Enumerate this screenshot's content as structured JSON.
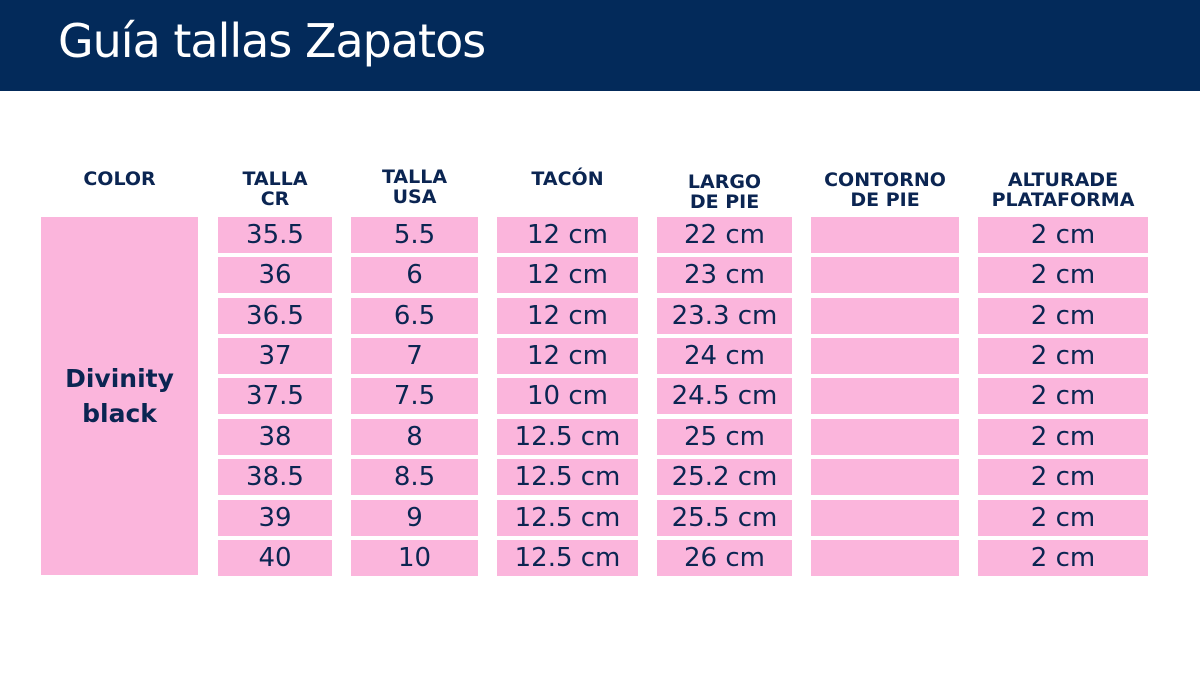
{
  "title": "Guía tallas Zapatos",
  "colors": {
    "header_bg": "#032a5a",
    "cell_bg": "#fbb5dc",
    "text_dark": "#0b2552"
  },
  "columns": [
    {
      "key": "color",
      "header": "COLOR"
    },
    {
      "key": "talla_cr",
      "header": "TALLA\nCR"
    },
    {
      "key": "talla_usa",
      "header": "TALLA\nUSA"
    },
    {
      "key": "tacon",
      "header": "TACÓN"
    },
    {
      "key": "largo_pie",
      "header": "LARGO\nDE PIE"
    },
    {
      "key": "contorno_pie",
      "header": "CONTORNO\nDE PIE"
    },
    {
      "key": "altura_plataforma",
      "header": "ALTURADE\nPLATAFORMA"
    }
  ],
  "color_name": "Divinity\nblack",
  "rows": [
    {
      "talla_cr": "35.5",
      "talla_usa": "5.5",
      "tacon": "12 cm",
      "largo_pie": "22 cm",
      "contorno_pie": "",
      "altura_plataforma": "2 cm"
    },
    {
      "talla_cr": "36",
      "talla_usa": "6",
      "tacon": "12 cm",
      "largo_pie": "23 cm",
      "contorno_pie": "",
      "altura_plataforma": "2 cm"
    },
    {
      "talla_cr": "36.5",
      "talla_usa": "6.5",
      "tacon": "12 cm",
      "largo_pie": "23.3 cm",
      "contorno_pie": "",
      "altura_plataforma": "2 cm"
    },
    {
      "talla_cr": "37",
      "talla_usa": "7",
      "tacon": "12 cm",
      "largo_pie": "24 cm",
      "contorno_pie": "",
      "altura_plataforma": "2 cm"
    },
    {
      "talla_cr": "37.5",
      "talla_usa": "7.5",
      "tacon": "10 cm",
      "largo_pie": "24.5 cm",
      "contorno_pie": "",
      "altura_plataforma": "2 cm"
    },
    {
      "talla_cr": "38",
      "talla_usa": "8",
      "tacon": "12.5 cm",
      "largo_pie": "25 cm",
      "contorno_pie": "",
      "altura_plataforma": "2 cm"
    },
    {
      "talla_cr": "38.5",
      "talla_usa": "8.5",
      "tacon": "12.5 cm",
      "largo_pie": "25.2 cm",
      "contorno_pie": "",
      "altura_plataforma": "2 cm"
    },
    {
      "talla_cr": "39",
      "talla_usa": "9",
      "tacon": "12.5 cm",
      "largo_pie": "25.5 cm",
      "contorno_pie": "",
      "altura_plataforma": "2 cm"
    },
    {
      "talla_cr": "40",
      "talla_usa": "10",
      "tacon": "12.5 cm",
      "largo_pie": "26 cm",
      "contorno_pie": "",
      "altura_plataforma": "2 cm"
    }
  ]
}
